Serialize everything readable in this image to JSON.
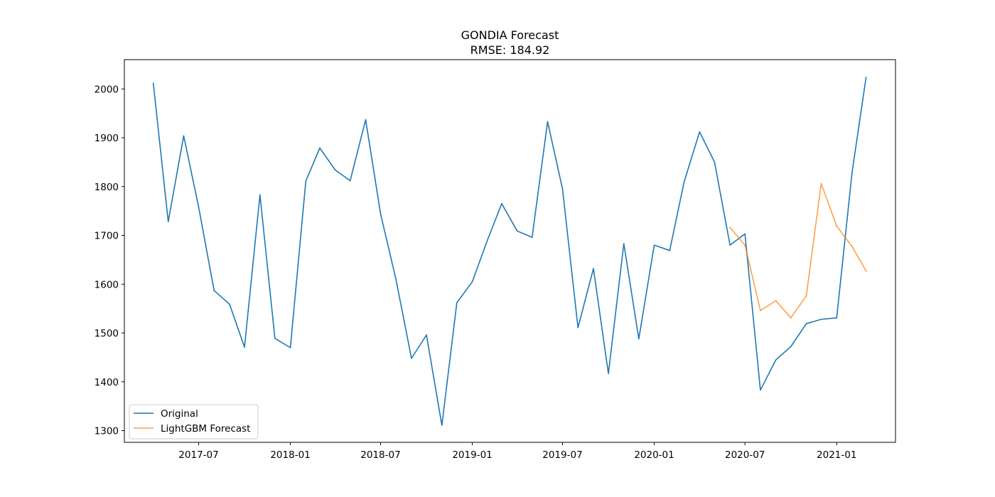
{
  "chart_data": {
    "type": "line",
    "title": "GONDIA Forecast",
    "subtitle": "RMSE: 184.92",
    "xlabel": "",
    "ylabel": "",
    "x_ticks": [
      "2017-07",
      "2018-01",
      "2018-07",
      "2019-01",
      "2019-07",
      "2020-01",
      "2020-07",
      "2021-01"
    ],
    "y_ticks": [
      1300,
      1400,
      1500,
      1600,
      1700,
      1800,
      1900,
      2000
    ],
    "xlim": [
      "2017-02-02",
      "2021-04-29"
    ],
    "ylim": [
      1276,
      2060
    ],
    "grid": false,
    "legend_position": "lower-left",
    "series": [
      {
        "name": "Original",
        "color": "#1f77b4",
        "x": [
          "2017-04",
          "2017-05",
          "2017-06",
          "2017-07",
          "2017-08",
          "2017-09",
          "2017-10",
          "2017-11",
          "2017-12",
          "2018-01",
          "2018-02",
          "2018-03",
          "2018-04",
          "2018-05",
          "2018-06",
          "2018-07",
          "2018-08",
          "2018-09",
          "2018-10",
          "2018-11",
          "2018-12",
          "2019-01",
          "2019-02",
          "2019-03",
          "2019-04",
          "2019-05",
          "2019-06",
          "2019-07",
          "2019-08",
          "2019-09",
          "2019-10",
          "2019-11",
          "2019-12",
          "2020-01",
          "2020-02",
          "2020-03",
          "2020-04",
          "2020-05",
          "2020-06",
          "2020-07",
          "2020-08",
          "2020-09",
          "2020-10",
          "2020-11",
          "2020-12",
          "2021-01",
          "2021-02",
          "2021-03"
        ],
        "values": [
          2012,
          1728,
          1904,
          1758,
          1587,
          1559,
          1471,
          1783,
          1489,
          1470,
          1811,
          1879,
          1834,
          1812,
          1937,
          1744,
          1609,
          1448,
          1496,
          1311,
          1562,
          1605,
          1692,
          1765,
          1709,
          1696,
          1933,
          1795,
          1511,
          1632,
          1417,
          1683,
          1488,
          1680,
          1669,
          1810,
          1912,
          1850,
          1680,
          1703,
          1383,
          1445,
          1472,
          1519,
          1528,
          1531,
          1830,
          2024
        ]
      },
      {
        "name": "LightGBM Forecast",
        "color": "#ff7f0e",
        "x": [
          "2020-06",
          "2020-07",
          "2020-08",
          "2020-09",
          "2020-10",
          "2020-11",
          "2020-12",
          "2021-01",
          "2021-02",
          "2021-03"
        ],
        "values": [
          1716,
          1680,
          1546,
          1566,
          1531,
          1576,
          1806,
          1719,
          1677,
          1627
        ]
      }
    ]
  }
}
